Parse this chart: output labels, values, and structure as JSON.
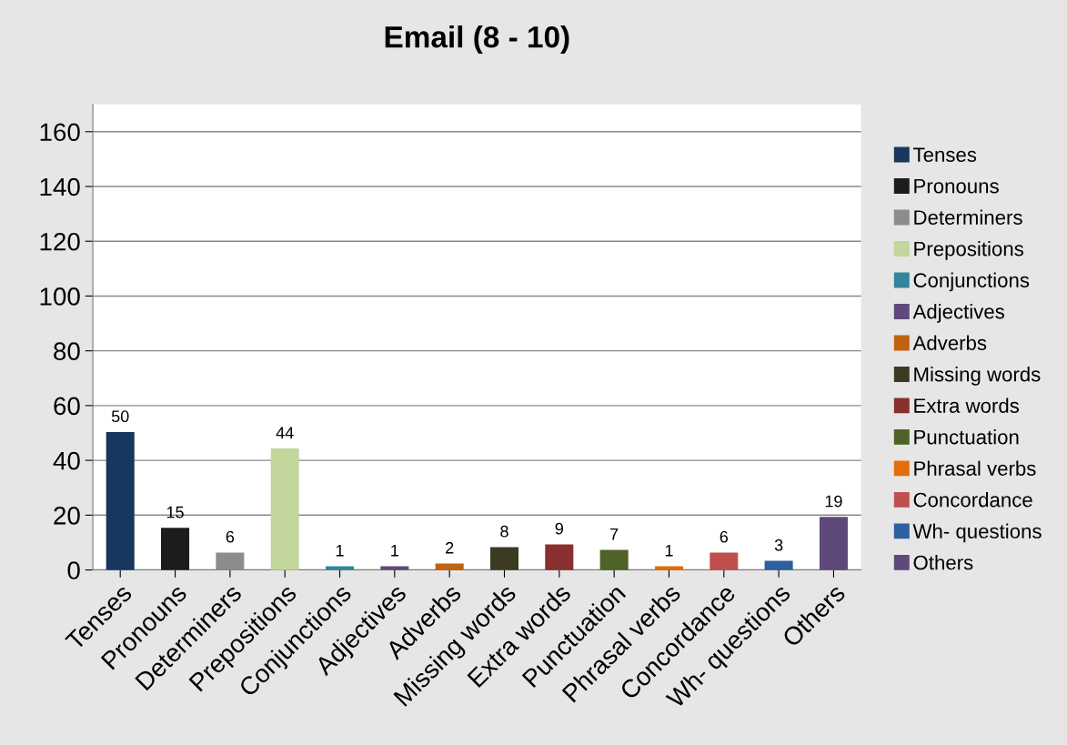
{
  "chart_data": {
    "type": "bar",
    "title": "Email (8 - 10)",
    "categories": [
      "Tenses",
      "Pronouns",
      "Determiners",
      "Prepositions",
      "Conjunctions",
      "Adjectives",
      "Adverbs",
      "Missing words",
      "Extra words",
      "Punctuation",
      "Phrasal verbs",
      "Concordance",
      "Wh- questions",
      "Others"
    ],
    "series": [
      {
        "name": "Tenses",
        "color": "#17375e",
        "values": [
          50,
          null,
          null,
          null,
          null,
          null,
          null,
          null,
          null,
          null,
          null,
          null,
          null,
          null
        ]
      },
      {
        "name": "Pronouns",
        "color": "#1c1c1c",
        "values": [
          null,
          15,
          null,
          null,
          null,
          null,
          null,
          null,
          null,
          null,
          null,
          null,
          null,
          null
        ]
      },
      {
        "name": "Determiners",
        "color": "#8c8c8c",
        "values": [
          null,
          null,
          6,
          null,
          null,
          null,
          null,
          null,
          null,
          null,
          null,
          null,
          null,
          null
        ]
      },
      {
        "name": "Prepositions",
        "color": "#c3d69b",
        "values": [
          null,
          null,
          null,
          44,
          null,
          null,
          null,
          null,
          null,
          null,
          null,
          null,
          null,
          null
        ]
      },
      {
        "name": "Conjunctions",
        "color": "#31859c",
        "values": [
          null,
          null,
          null,
          null,
          1,
          null,
          null,
          null,
          null,
          null,
          null,
          null,
          null,
          null
        ]
      },
      {
        "name": "Adjectives",
        "color": "#604a7b",
        "values": [
          null,
          null,
          null,
          null,
          null,
          1,
          null,
          null,
          null,
          null,
          null,
          null,
          null,
          null
        ]
      },
      {
        "name": "Adverbs",
        "color": "#c0620e",
        "values": [
          null,
          null,
          null,
          null,
          null,
          null,
          2,
          null,
          null,
          null,
          null,
          null,
          null,
          null
        ]
      },
      {
        "name": "Missing words",
        "color": "#3d3a24",
        "values": [
          null,
          null,
          null,
          null,
          null,
          null,
          null,
          8,
          null,
          null,
          null,
          null,
          null,
          null
        ]
      },
      {
        "name": "Extra words",
        "color": "#8b2f2f",
        "values": [
          null,
          null,
          null,
          null,
          null,
          null,
          null,
          null,
          9,
          null,
          null,
          null,
          null,
          null
        ]
      },
      {
        "name": "Punctuation",
        "color": "#4f6228",
        "values": [
          null,
          null,
          null,
          null,
          null,
          null,
          null,
          null,
          null,
          7,
          null,
          null,
          null,
          null
        ]
      },
      {
        "name": "Phrasal verbs",
        "color": "#e46c0a",
        "values": [
          null,
          null,
          null,
          null,
          null,
          null,
          null,
          null,
          null,
          null,
          1,
          null,
          null,
          null
        ]
      },
      {
        "name": "Concordance",
        "color": "#c0504d",
        "values": [
          null,
          null,
          null,
          null,
          null,
          null,
          null,
          null,
          null,
          null,
          null,
          6,
          null,
          null
        ]
      },
      {
        "name": "Wh- questions",
        "color": "#2e5f9e",
        "values": [
          null,
          null,
          null,
          null,
          null,
          null,
          null,
          null,
          null,
          null,
          null,
          null,
          3,
          null
        ]
      },
      {
        "name": "Others",
        "color": "#5f497a",
        "values": [
          null,
          null,
          null,
          null,
          null,
          null,
          null,
          null,
          null,
          null,
          null,
          null,
          null,
          19
        ]
      }
    ],
    "ylim": [
      0,
      170
    ],
    "yticks": [
      0,
      20,
      40,
      60,
      80,
      100,
      120,
      140,
      160
    ],
    "grid": "y",
    "legend": "right",
    "data_labels": true
  }
}
